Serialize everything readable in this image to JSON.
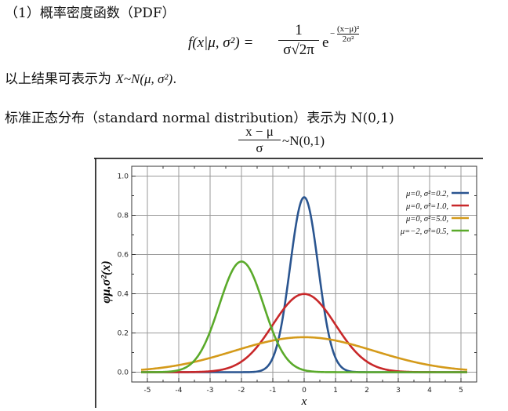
{
  "heading": "（1）概率密度函数（PDF）",
  "pdf_formula": {
    "lhs": "f(x|μ, σ²) =",
    "numerator": "1",
    "denominator": "σ√2π",
    "base": "e",
    "exp_sign": "−",
    "exp_numerator": "(x−μ)²",
    "exp_denominator": "2σ²"
  },
  "result_text": {
    "prefix": "以上结果可表示为 ",
    "expr": "X~N(μ, σ²)",
    "suffix": "."
  },
  "standard_text": "标准正态分布（standard normal distribution）表示为 N(0,1)",
  "std_formula": {
    "numerator": "x − μ",
    "denominator": "σ",
    "rhs": "~N(0,1)"
  },
  "chart_data": {
    "type": "line",
    "xlabel": "x",
    "ylabel": "φμ,σ²(x)",
    "xlim": [
      -5.5,
      5.5
    ],
    "ylim": [
      -0.05,
      1.05
    ],
    "x_ticks": [
      "-5",
      "-4",
      "-3",
      "-2",
      "-1",
      "0",
      "1",
      "2",
      "3",
      "4",
      "5"
    ],
    "y_ticks": [
      "0.0",
      "0.2",
      "0.4",
      "0.6",
      "0.8",
      "1.0"
    ],
    "grid": true,
    "legend_position": "top-right",
    "series": [
      {
        "name": "μ=0,   σ²=0.2,",
        "mu": 0,
        "variance": 0.2,
        "color": "#2a5590"
      },
      {
        "name": "μ=0,   σ²=1.0,",
        "mu": 0,
        "variance": 1.0,
        "color": "#c8282a"
      },
      {
        "name": "μ=0,   σ²=5.0,",
        "mu": 0,
        "variance": 5.0,
        "color": "#d49a1a"
      },
      {
        "name": "μ=−2, σ²=0.5,",
        "mu": -2,
        "variance": 0.5,
        "color": "#5aaa2a"
      }
    ]
  }
}
